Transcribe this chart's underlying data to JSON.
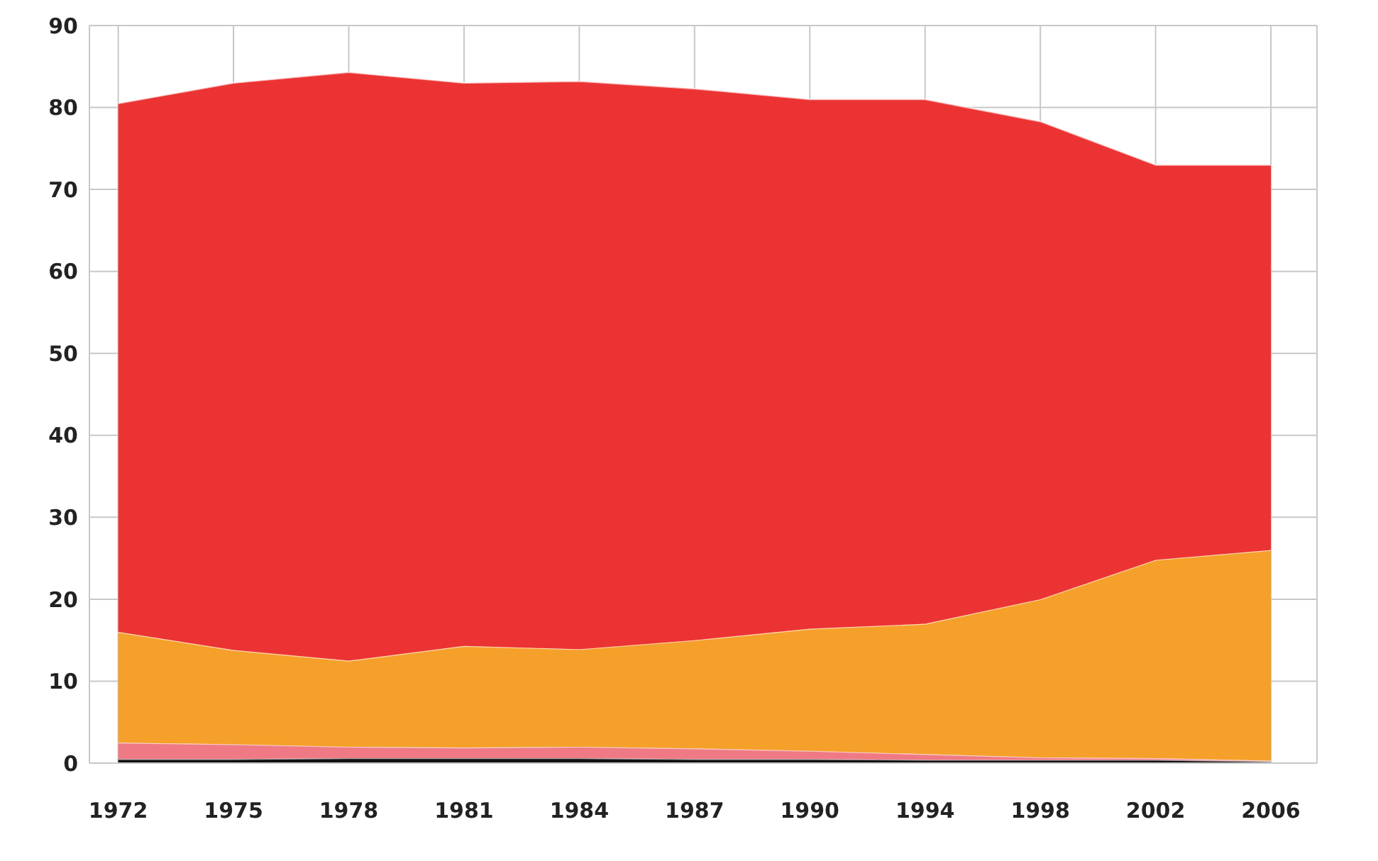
{
  "chart_data": {
    "type": "area",
    "stacked": true,
    "categories": [
      "1972",
      "1975",
      "1978",
      "1981",
      "1984",
      "1987",
      "1990",
      "1994",
      "1998",
      "2002",
      "2006"
    ],
    "series": [
      {
        "color": "#111111",
        "values": [
          0.5,
          0.5,
          0.6,
          0.6,
          0.6,
          0.5,
          0.5,
          0.4,
          0.4,
          0.4,
          0.2
        ]
      },
      {
        "color": "#ef7a85",
        "values": [
          2.0,
          1.8,
          1.4,
          1.3,
          1.4,
          1.3,
          1.0,
          0.7,
          0.3,
          0.2,
          0.1
        ]
      },
      {
        "color": "#f5a02a",
        "values": [
          13.5,
          11.5,
          10.5,
          12.4,
          11.9,
          13.2,
          14.9,
          15.9,
          19.3,
          24.2,
          25.7
        ]
      },
      {
        "color": "#ec3333",
        "values": [
          64.5,
          69.2,
          71.8,
          68.7,
          69.3,
          67.3,
          64.6,
          64.0,
          58.3,
          48.2,
          47.0
        ]
      }
    ],
    "ylim": [
      0,
      90
    ],
    "yticks": [
      0,
      10,
      20,
      30,
      40,
      50,
      60,
      70,
      80,
      90
    ],
    "grid": true,
    "legend": false
  }
}
